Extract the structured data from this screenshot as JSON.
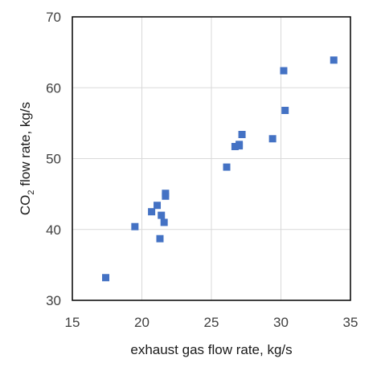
{
  "chart_data": {
    "type": "scatter",
    "title": "",
    "xlabel": "exhaust gas flow rate, kg/s",
    "ylabel": {
      "prefix": "CO",
      "subscript": "2",
      "suffix": " flow rate, kg/s"
    },
    "xlim": [
      15,
      35
    ],
    "ylim": [
      30,
      70
    ],
    "xticks": [
      15,
      20,
      25,
      30,
      35
    ],
    "yticks": [
      30,
      40,
      50,
      60,
      70
    ],
    "grid": true,
    "legend": "none",
    "series": [
      {
        "color": "#4472c4",
        "marker": "square",
        "points": [
          {
            "x": 17.4,
            "y": 33.2
          },
          {
            "x": 19.5,
            "y": 40.4
          },
          {
            "x": 20.7,
            "y": 42.5
          },
          {
            "x": 21.1,
            "y": 43.4
          },
          {
            "x": 21.3,
            "y": 38.7
          },
          {
            "x": 21.4,
            "y": 42.0
          },
          {
            "x": 21.6,
            "y": 41.0
          },
          {
            "x": 21.7,
            "y": 44.7
          },
          {
            "x": 21.7,
            "y": 45.1
          },
          {
            "x": 26.1,
            "y": 48.8
          },
          {
            "x": 26.7,
            "y": 51.7
          },
          {
            "x": 27.0,
            "y": 51.8
          },
          {
            "x": 27.0,
            "y": 52.0
          },
          {
            "x": 27.2,
            "y": 53.4
          },
          {
            "x": 29.4,
            "y": 52.8
          },
          {
            "x": 30.2,
            "y": 62.4
          },
          {
            "x": 30.3,
            "y": 56.8
          },
          {
            "x": 33.8,
            "y": 63.9
          }
        ]
      }
    ],
    "colors": {
      "plot_border": "#000000",
      "grid": "#d9d9d9",
      "marker": "#4472c4"
    }
  }
}
